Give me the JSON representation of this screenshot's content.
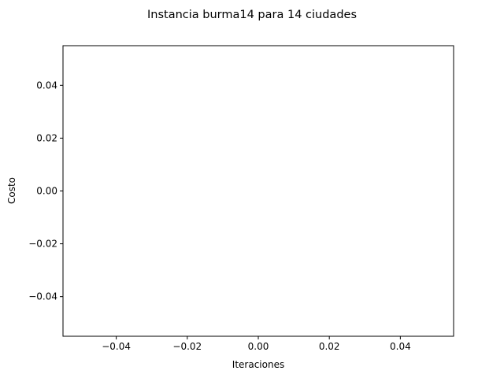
{
  "chart_data": {
    "type": "line",
    "title": "Instancia burma14 para 14 ciudades",
    "xlabel": "Iteraciones",
    "ylabel": "Costo",
    "xlim": [
      -0.055,
      0.055
    ],
    "ylim": [
      -0.055,
      0.055
    ],
    "x_ticks": [
      -0.04,
      -0.02,
      0.0,
      0.02,
      0.04
    ],
    "x_tick_labels": [
      "−0.04",
      "−0.02",
      "0.00",
      "0.02",
      "0.04"
    ],
    "y_ticks": [
      -0.04,
      -0.02,
      0.0,
      0.02,
      0.04
    ],
    "y_tick_labels": [
      "−0.04",
      "−0.02",
      "0.00",
      "0.02",
      "0.04"
    ],
    "series": [],
    "grid": false
  }
}
